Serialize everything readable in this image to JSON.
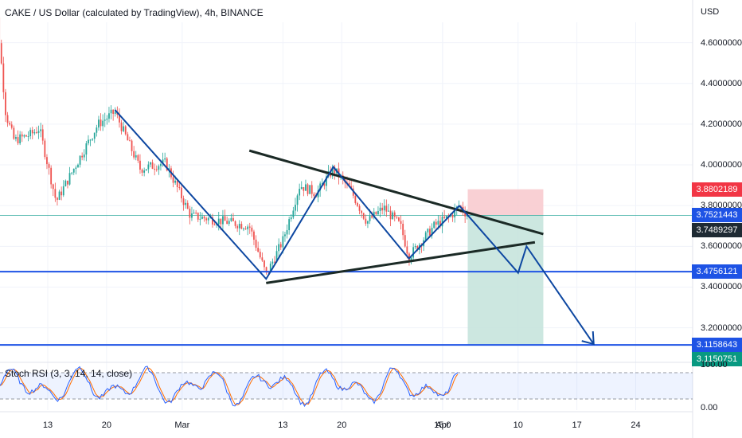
{
  "header": {
    "title": "CAKE / US Dollar (calculated by TradingView), 4h, BINANCE",
    "currency": "USD"
  },
  "indicator": {
    "label": "Stoch RSI (3, 3, 14, 14, close)",
    "levels": [
      "100.00",
      "0.00"
    ],
    "k_color": "#2962ff",
    "d_color": "#ff6d00"
  },
  "colors": {
    "up": "#26a69a",
    "down": "#ef5350",
    "pattern": "#0d47a1",
    "trendline": "#1b2a26",
    "horizontal": "#1e53e5",
    "stop_zone": "#f8c8cc",
    "target_zone": "#c3e3da"
  },
  "chart_data": {
    "type": "candlestick",
    "title": "CAKE / US Dollar (calculated by TradingView), 4h, BINANCE",
    "y_axis": {
      "label": "USD",
      "ticks": [
        "4.6000000",
        "4.4000000",
        "4.2000000",
        "4.0000000",
        "3.8000000",
        "3.6000000",
        "3.4000000",
        "3.2000000"
      ],
      "range": [
        3.05,
        4.7
      ]
    },
    "x_axis": {
      "ticks": [
        "13",
        "20",
        "Mar",
        "13",
        "20",
        "Apr",
        "10",
        "17",
        "24",
        "15:0"
      ]
    },
    "price_path": [
      {
        "t": "Feb 6",
        "price": 4.55
      },
      {
        "t": "Feb 7",
        "price": 4.72
      },
      {
        "t": "Feb 8",
        "price": 4.25
      },
      {
        "t": "Feb 9",
        "price": 4.12
      },
      {
        "t": "Feb 11",
        "price": 4.15
      },
      {
        "t": "Feb 12",
        "price": 4.18
      },
      {
        "t": "Feb 14",
        "price": 3.82
      },
      {
        "t": "Feb 17",
        "price": 4.05
      },
      {
        "t": "Feb 19",
        "price": 4.2
      },
      {
        "t": "Feb 21",
        "price": 4.26
      },
      {
        "t": "Feb 24",
        "price": 3.98
      },
      {
        "t": "Feb 27",
        "price": 4.01
      },
      {
        "t": "Mar 2",
        "price": 3.75
      },
      {
        "t": "Mar 5",
        "price": 3.73
      },
      {
        "t": "Mar 9",
        "price": 3.7
      },
      {
        "t": "Mar 11",
        "price": 3.46
      },
      {
        "t": "Mar 13",
        "price": 3.63
      },
      {
        "t": "Mar 15",
        "price": 3.9
      },
      {
        "t": "Mar 17",
        "price": 3.86
      },
      {
        "t": "Mar 19",
        "price": 3.98
      },
      {
        "t": "Mar 21",
        "price": 3.88
      },
      {
        "t": "Mar 23",
        "price": 3.72
      },
      {
        "t": "Mar 25",
        "price": 3.79
      },
      {
        "t": "Mar 27",
        "price": 3.7
      },
      {
        "t": "Mar 28",
        "price": 3.55
      },
      {
        "t": "Mar 31",
        "price": 3.7
      },
      {
        "t": "Apr 2",
        "price": 3.75
      },
      {
        "t": "Apr 3",
        "price": 3.8
      },
      {
        "t": "Apr 4",
        "price": 3.752
      }
    ],
    "price_labels": [
      {
        "text": "3.8802189",
        "value": 3.8802189,
        "color": "#f23645"
      },
      {
        "text": "3.7521443",
        "value": 3.7521443,
        "color": "#1e53e5"
      },
      {
        "text": "3.7489297",
        "value": 3.7489297,
        "color": "#1e2a33"
      },
      {
        "text": "3.4756121",
        "value": 3.4756121,
        "color": "#1e53e5"
      },
      {
        "text": "3.1158643",
        "value": 3.1158643,
        "color": "#1e53e5"
      },
      {
        "text": "3.1150751",
        "value": 3.1150751,
        "color": "#089981"
      }
    ],
    "horizontal_lines": [
      3.4756121,
      3.1158643
    ],
    "position": {
      "entry": 3.7521443,
      "stop": 3.8802189,
      "target": 3.1150751,
      "from": "Apr 4",
      "to": "Apr 13"
    },
    "triangle": {
      "upper": [
        {
          "t": "Mar 9",
          "price": 4.07
        },
        {
          "t": "Apr 13",
          "price": 3.66
        }
      ],
      "lower": [
        {
          "t": "Mar 11",
          "price": 3.42
        },
        {
          "t": "Apr 12",
          "price": 3.62
        }
      ]
    },
    "zigzag": [
      {
        "t": "Feb 21",
        "price": 4.27
      },
      {
        "t": "Mar 11",
        "price": 3.44
      },
      {
        "t": "Mar 19",
        "price": 3.99
      },
      {
        "t": "Mar 28",
        "price": 3.54
      },
      {
        "t": "Apr 3",
        "price": 3.8
      }
    ],
    "projection": [
      {
        "t": "Apr 3",
        "price": 3.8
      },
      {
        "t": "Apr 10",
        "price": 3.47
      },
      {
        "t": "Apr 11",
        "price": 3.6
      },
      {
        "t": "Apr 19",
        "price": 3.12
      }
    ]
  }
}
